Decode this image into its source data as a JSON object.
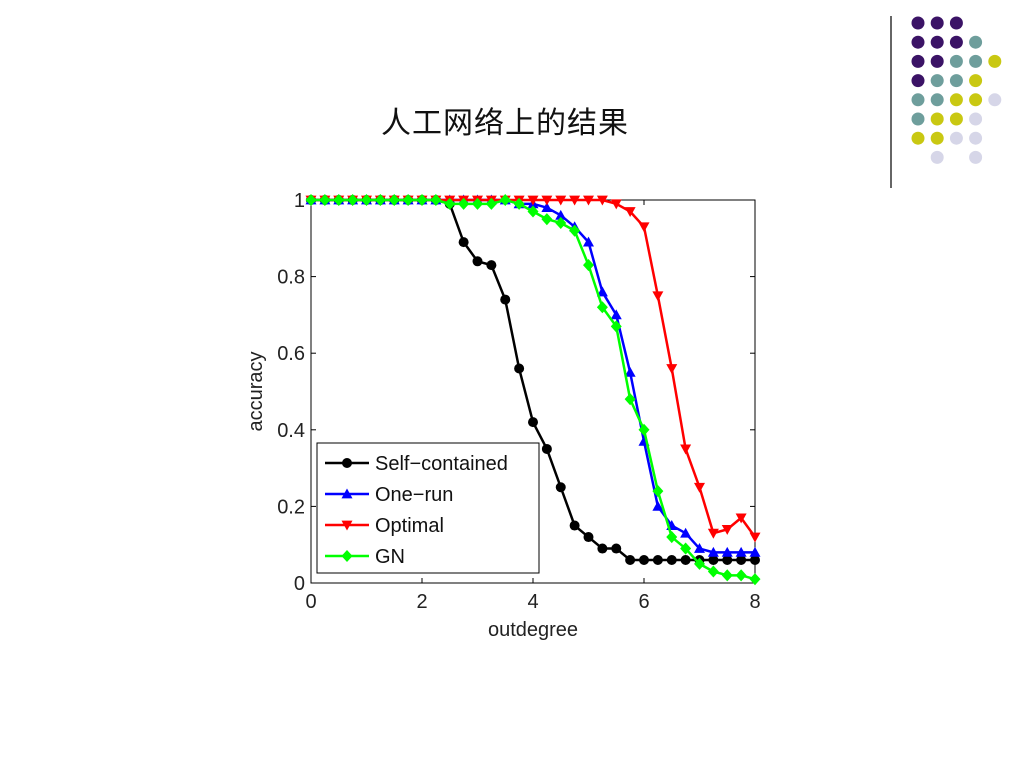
{
  "slide": {
    "title": "人工网络上的结果"
  },
  "decoration": {
    "colors": {
      "purple": "#3b1366",
      "teal": "#6e9e9c",
      "yellow": "#c9c812",
      "lavender": "#d6d6e8",
      "rule": "#333333"
    },
    "dot_grid": [
      [
        "purple",
        "purple",
        "purple",
        "",
        "",
        ""
      ],
      [
        "purple",
        "purple",
        "purple",
        "teal",
        "",
        ""
      ],
      [
        "purple",
        "purple",
        "teal",
        "teal",
        "yellow",
        ""
      ],
      [
        "purple",
        "teal",
        "teal",
        "yellow",
        "",
        ""
      ],
      [
        "teal",
        "teal",
        "yellow",
        "yellow",
        "lavender",
        ""
      ],
      [
        "teal",
        "yellow",
        "yellow",
        "lavender",
        "",
        ""
      ],
      [
        "yellow",
        "yellow",
        "lavender",
        "lavender",
        "",
        ""
      ],
      [
        "",
        "lavender",
        "",
        "lavender",
        "",
        ""
      ]
    ]
  },
  "chart_data": {
    "type": "line",
    "xlabel": "outdegree",
    "ylabel": "accuracy",
    "xlim": [
      0,
      8
    ],
    "ylim": [
      0,
      1
    ],
    "xticks": [
      0,
      2,
      4,
      6,
      8
    ],
    "yticks": [
      0,
      0.2,
      0.4,
      0.6,
      0.8,
      1
    ],
    "ytick_labels": [
      "0",
      "0.2",
      "0.4",
      "0.6",
      "0.8",
      "1"
    ],
    "grid": false,
    "legend_position": "lower-left",
    "x": [
      0,
      0.25,
      0.5,
      0.75,
      1,
      1.25,
      1.5,
      1.75,
      2,
      2.25,
      2.5,
      2.75,
      3,
      3.25,
      3.5,
      3.75,
      4,
      4.25,
      4.5,
      4.75,
      5,
      5.25,
      5.5,
      5.75,
      6,
      6.25,
      6.5,
      6.75,
      7,
      7.25,
      7.5,
      7.75,
      8
    ],
    "series": [
      {
        "name": "Self−contained",
        "color": "#000000",
        "marker": "circle",
        "values": [
          1,
          1,
          1,
          1,
          1,
          1,
          1,
          1,
          1,
          1,
          0.99,
          0.89,
          0.84,
          0.83,
          0.74,
          0.56,
          0.42,
          0.35,
          0.25,
          0.15,
          0.12,
          0.09,
          0.09,
          0.06,
          0.06,
          0.06,
          0.06,
          0.06,
          0.06,
          0.06,
          0.06,
          0.06,
          0.06
        ]
      },
      {
        "name": "One−run",
        "color": "#0000ff",
        "marker": "triangle-up",
        "values": [
          1,
          1,
          1,
          1,
          1,
          1,
          1,
          1,
          1,
          1,
          1,
          1,
          1,
          1,
          1,
          0.99,
          0.99,
          0.98,
          0.96,
          0.93,
          0.89,
          0.76,
          0.7,
          0.55,
          0.37,
          0.2,
          0.15,
          0.13,
          0.09,
          0.08,
          0.08,
          0.08,
          0.08
        ]
      },
      {
        "name": "Optimal",
        "color": "#ff0000",
        "marker": "triangle-down",
        "values": [
          1,
          1,
          1,
          1,
          1,
          1,
          1,
          1,
          1,
          1,
          1,
          1,
          1,
          1,
          1,
          1,
          1,
          1,
          1,
          1,
          1,
          1,
          0.99,
          0.97,
          0.93,
          0.75,
          0.56,
          0.35,
          0.25,
          0.13,
          0.14,
          0.17,
          0.12
        ]
      },
      {
        "name": "GN",
        "color": "#00ff00",
        "marker": "diamond",
        "values": [
          1,
          1,
          1,
          1,
          1,
          1,
          1,
          1,
          1,
          1,
          0.99,
          0.99,
          0.99,
          0.99,
          1,
          0.99,
          0.97,
          0.95,
          0.94,
          0.92,
          0.83,
          0.72,
          0.67,
          0.48,
          0.4,
          0.24,
          0.12,
          0.09,
          0.05,
          0.03,
          0.02,
          0.02,
          0.01
        ]
      }
    ]
  }
}
